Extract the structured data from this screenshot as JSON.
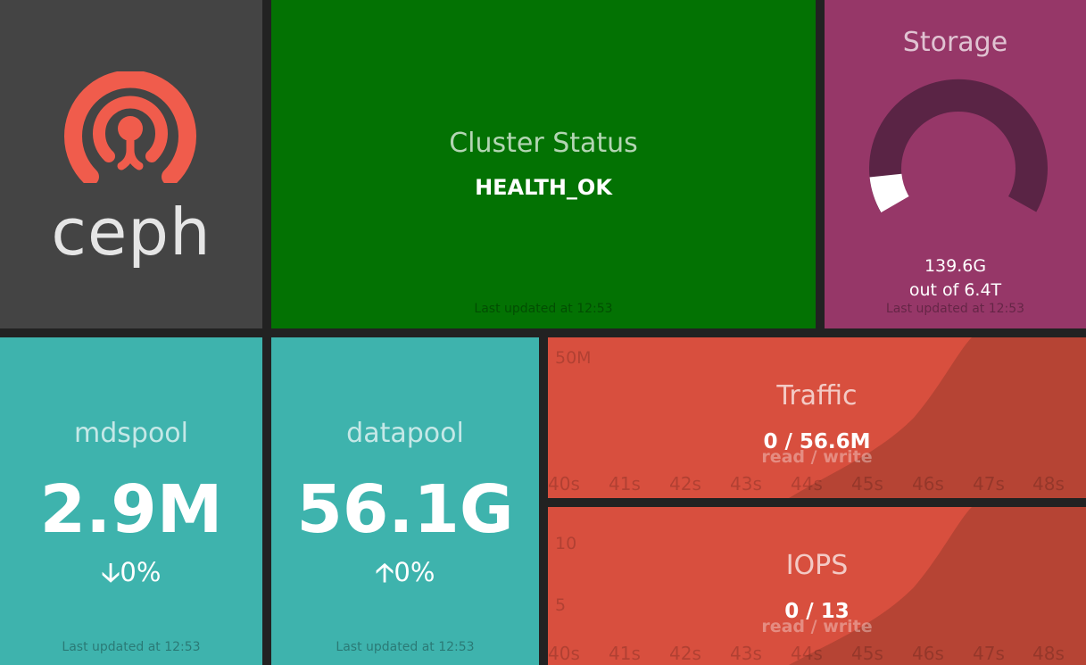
{
  "logo": {
    "wordmark": "ceph",
    "icon": "ceph-logo-icon",
    "color": "#f05c4c"
  },
  "cluster_status": {
    "title": "Cluster Status",
    "value": "HEALTH_OK",
    "updated": "Last updated at 12:53"
  },
  "storage": {
    "title": "Storage",
    "used": "139.6G",
    "total": "out of 6.4T",
    "used_fraction": 0.02,
    "updated": "Last updated at 12:53"
  },
  "mdspool": {
    "title": "mdspool",
    "value": "2.9M",
    "change": "0%",
    "direction": "down",
    "arrow": "🡣",
    "updated": "Last updated at 12:53"
  },
  "datapool": {
    "title": "datapool",
    "value": "56.1G",
    "change": "0%",
    "direction": "up",
    "arrow": "🡡",
    "updated": "Last updated at 12:53"
  },
  "traffic": {
    "title": "Traffic",
    "value": "0 / 56.6M",
    "sub": "read / write",
    "y_ticks": [
      "50M"
    ],
    "x_ticks": [
      "40s",
      "41s",
      "42s",
      "43s",
      "44s",
      "45s",
      "46s",
      "47s",
      "48s"
    ]
  },
  "iops": {
    "title": "IOPS",
    "value": "0 / 13",
    "sub": "read / write",
    "y_ticks": [
      "10",
      "5"
    ],
    "x_ticks": [
      "40s",
      "41s",
      "42s",
      "43s",
      "44s",
      "45s",
      "46s",
      "47s",
      "48s"
    ]
  },
  "colors": {
    "logo_bg": "#444444",
    "status_ok": "#037203",
    "storage_bg": "#963768",
    "pool_bg": "#3eb3ad",
    "graph_bg": "#d84f3e",
    "graph_fill": "#b64434"
  }
}
